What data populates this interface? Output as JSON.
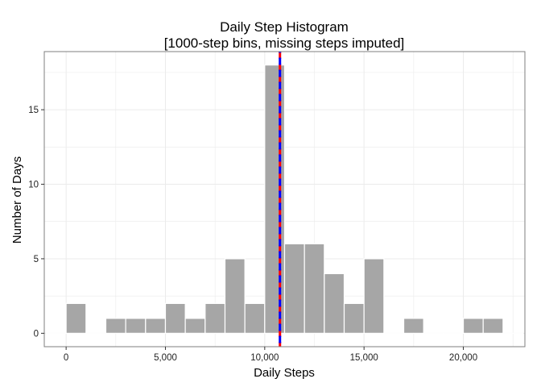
{
  "chart_data": {
    "type": "bar",
    "title": "Daily Step Histogram",
    "subtitle": "[1000-step bins, missing steps imputed]",
    "xlabel": "Daily Steps",
    "ylabel": "Number of Days",
    "xlim": [
      -1100,
      23100
    ],
    "ylim": [
      -0.9,
      18.9
    ],
    "grid": true,
    "bin_width": 1000,
    "bins": [
      {
        "start": -1000,
        "count": 0
      },
      {
        "start": 0,
        "count": 2
      },
      {
        "start": 1000,
        "count": 0
      },
      {
        "start": 2000,
        "count": 1
      },
      {
        "start": 3000,
        "count": 1
      },
      {
        "start": 4000,
        "count": 1
      },
      {
        "start": 5000,
        "count": 2
      },
      {
        "start": 6000,
        "count": 1
      },
      {
        "start": 7000,
        "count": 2
      },
      {
        "start": 8000,
        "count": 5
      },
      {
        "start": 9000,
        "count": 2
      },
      {
        "start": 10000,
        "count": 18
      },
      {
        "start": 11000,
        "count": 6
      },
      {
        "start": 12000,
        "count": 6
      },
      {
        "start": 13000,
        "count": 4
      },
      {
        "start": 14000,
        "count": 2
      },
      {
        "start": 15000,
        "count": 5
      },
      {
        "start": 16000,
        "count": 0
      },
      {
        "start": 17000,
        "count": 1
      },
      {
        "start": 18000,
        "count": 0
      },
      {
        "start": 19000,
        "count": 0
      },
      {
        "start": 20000,
        "count": 1
      },
      {
        "start": 21000,
        "count": 1
      },
      {
        "start": 22000,
        "count": 0
      }
    ],
    "x_ticks": [
      {
        "value": 0,
        "label": "0"
      },
      {
        "value": 5000,
        "label": "5,000"
      },
      {
        "value": 10000,
        "label": "10,000"
      },
      {
        "value": 15000,
        "label": "15,000"
      },
      {
        "value": 20000,
        "label": "20,000"
      }
    ],
    "y_ticks": [
      {
        "value": 0,
        "label": "0"
      },
      {
        "value": 5,
        "label": "5"
      },
      {
        "value": 10,
        "label": "10"
      },
      {
        "value": 15,
        "label": "15"
      }
    ],
    "vlines": [
      {
        "x": 10766,
        "color": "#ff0000",
        "style": "dashed"
      },
      {
        "x": 10766,
        "color": "#0000ff",
        "style": "dashed"
      }
    ],
    "colors": {
      "bar_fill": "#a6a6a6",
      "bar_stroke": "#ffffff",
      "grid": "#ebebeb",
      "panel_border": "#7f7f7f"
    }
  }
}
